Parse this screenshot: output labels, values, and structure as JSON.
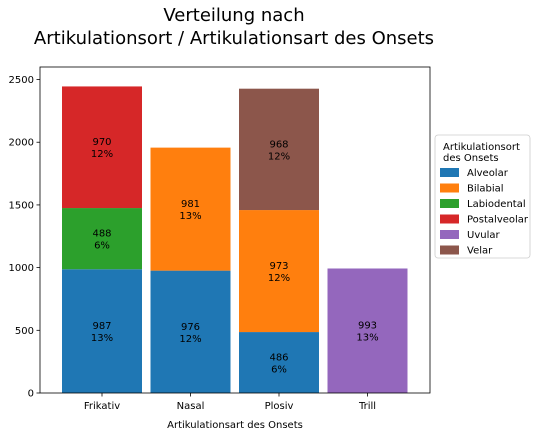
{
  "chart_data": {
    "type": "bar",
    "stacked": true,
    "title_lines": [
      "Verteilung nach",
      "Artikulationsort / Artikulationsart des Onsets"
    ],
    "xlabel": "Artikulationsart des Onsets",
    "ylabel": "",
    "ylim": [
      0,
      2600
    ],
    "yticks": [
      0,
      500,
      1000,
      1500,
      2000,
      2500
    ],
    "categories": [
      "Frikativ",
      "Nasal",
      "Plosiv",
      "Trill"
    ],
    "legend": {
      "title_lines": [
        "Artikulationsort",
        "des Onsets"
      ],
      "placement": "right"
    },
    "series": [
      {
        "name": "Alveolar",
        "color": "#1f77b4",
        "values": [
          987,
          976,
          486,
          0
        ],
        "labels": [
          "13%",
          "12%",
          "6%",
          ""
        ]
      },
      {
        "name": "Bilabial",
        "color": "#ff7f0e",
        "values": [
          0,
          981,
          973,
          0
        ],
        "labels": [
          "",
          "13%",
          "12%",
          ""
        ]
      },
      {
        "name": "Labiodental",
        "color": "#2ca02c",
        "values": [
          488,
          0,
          0,
          0
        ],
        "labels": [
          "6%",
          "",
          "",
          ""
        ]
      },
      {
        "name": "Postalveolar",
        "color": "#d62728",
        "values": [
          970,
          0,
          0,
          0
        ],
        "labels": [
          "12%",
          "",
          "",
          ""
        ]
      },
      {
        "name": "Uvular",
        "color": "#9467bd",
        "values": [
          0,
          0,
          0,
          993
        ],
        "labels": [
          "",
          "",
          "",
          "13%"
        ]
      },
      {
        "name": "Velar",
        "color": "#8c564b",
        "values": [
          0,
          0,
          968,
          0
        ],
        "labels": [
          "",
          "",
          "12%",
          ""
        ]
      }
    ]
  }
}
